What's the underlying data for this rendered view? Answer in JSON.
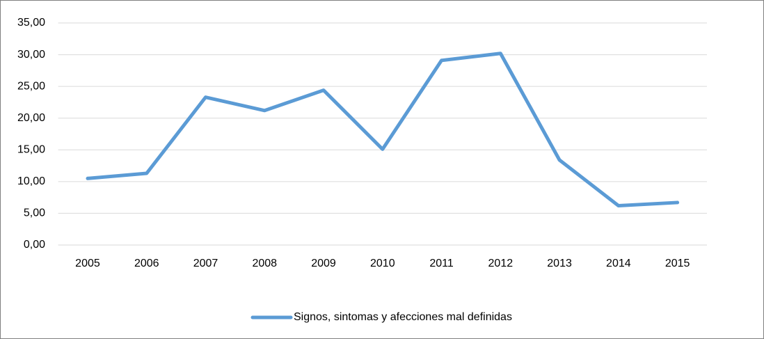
{
  "chart_data": {
    "type": "line",
    "categories": [
      "2005",
      "2006",
      "2007",
      "2008",
      "2009",
      "2010",
      "2011",
      "2012",
      "2013",
      "2014",
      "2015"
    ],
    "series": [
      {
        "name": "Signos, sintomas y afecciones mal definidas",
        "color": "#5b9bd5",
        "values": [
          10.5,
          11.3,
          23.3,
          21.2,
          24.4,
          15.1,
          29.1,
          30.2,
          13.4,
          6.2,
          6.7
        ]
      }
    ],
    "ylim": [
      0,
      35
    ],
    "yticks": [
      {
        "value": 0,
        "label": "0,00"
      },
      {
        "value": 5,
        "label": "5,00"
      },
      {
        "value": 10,
        "label": "10,00"
      },
      {
        "value": 15,
        "label": "15,00"
      },
      {
        "value": 20,
        "label": "20,00"
      },
      {
        "value": 25,
        "label": "25,00"
      },
      {
        "value": 30,
        "label": "30,00"
      },
      {
        "value": 35,
        "label": "35,00"
      }
    ],
    "grid": true,
    "legend": "bottom"
  }
}
